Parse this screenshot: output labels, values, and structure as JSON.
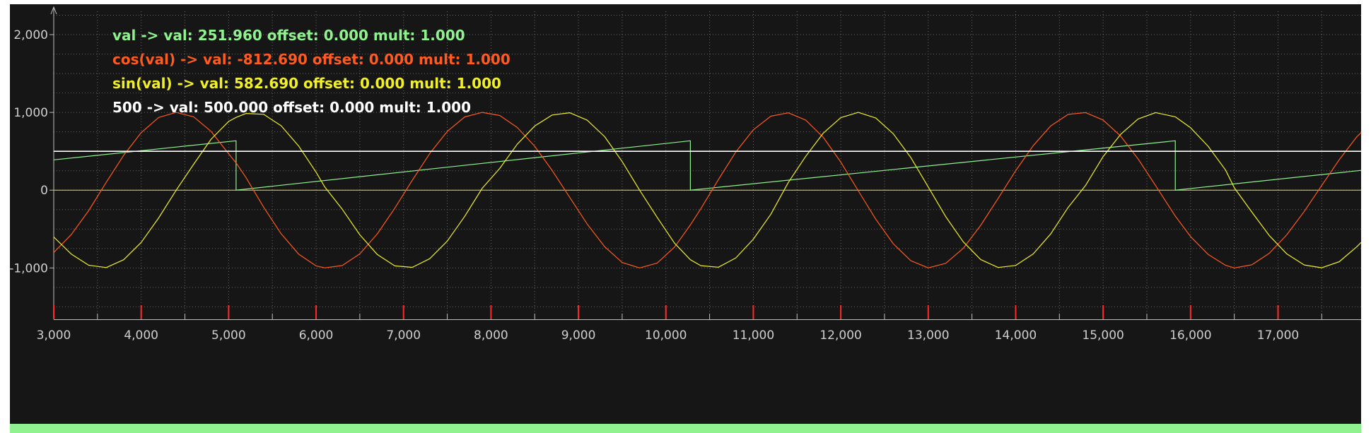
{
  "chart_data": {
    "type": "line",
    "title": "",
    "xlabel": "",
    "ylabel": "",
    "xlim": [
      3000,
      17950
    ],
    "ylim": [
      -1660,
      2300
    ],
    "grid": true,
    "x_ticks": [
      3000,
      4000,
      5000,
      6000,
      7000,
      8000,
      9000,
      10000,
      11000,
      12000,
      13000,
      14000,
      15000,
      16000,
      17000
    ],
    "x_tick_labels": [
      "3,000",
      "4,000",
      "5,000",
      "6,000",
      "7,000",
      "8,000",
      "9,000",
      "10,000",
      "11,000",
      "12,000",
      "13,000",
      "14,000",
      "15,000",
      "16,000",
      "17,000"
    ],
    "y_ticks": [
      2000,
      1000,
      0,
      -1000
    ],
    "y_tick_labels": [
      "2,000",
      "1,000",
      "0",
      "-1,000"
    ],
    "legend_position": "top-left",
    "series": [
      {
        "name": "val",
        "legend_text": "val ->  val: 251.960 offset: 0.000 mult: 1.000",
        "color": "#8ff28f",
        "points": [
          [
            3000,
            390
          ],
          [
            5085,
            635
          ],
          [
            5085,
            0
          ],
          [
            10280,
            635
          ],
          [
            10280,
            0
          ],
          [
            15825,
            635
          ],
          [
            15825,
            0
          ],
          [
            17950,
            255
          ]
        ]
      },
      {
        "name": "cos(val)",
        "legend_text": "cos(val) ->  val: -812.690 offset: 0.000 mult: 1.000",
        "color": "#ff5a1f",
        "points": [
          [
            3000,
            -802
          ],
          [
            3200,
            -572
          ],
          [
            3400,
            -262
          ],
          [
            3600,
            100
          ],
          [
            3800,
            448
          ],
          [
            4000,
            740
          ],
          [
            4200,
            935
          ],
          [
            4400,
            1000
          ],
          [
            4600,
            943
          ],
          [
            4800,
            755
          ],
          [
            5000,
            467
          ],
          [
            5085,
            351
          ],
          [
            5200,
            159
          ],
          [
            5400,
            -218
          ],
          [
            5600,
            -560
          ],
          [
            5800,
            -822
          ],
          [
            6000,
            -973
          ],
          [
            6100,
            -999
          ],
          [
            6300,
            -969
          ],
          [
            6500,
            -819
          ],
          [
            6700,
            -562
          ],
          [
            6900,
            -232
          ],
          [
            7100,
            127
          ],
          [
            7300,
            472
          ],
          [
            7500,
            756
          ],
          [
            7700,
            942
          ],
          [
            7900,
            1000
          ],
          [
            8100,
            960
          ],
          [
            8300,
            807
          ],
          [
            8500,
            565
          ],
          [
            8700,
            253
          ],
          [
            8900,
            -91
          ],
          [
            9100,
            -435
          ],
          [
            9300,
            -726
          ],
          [
            9500,
            -930
          ],
          [
            9700,
            -1000
          ],
          [
            9900,
            -937
          ],
          [
            10100,
            -731
          ],
          [
            10280,
            -447
          ],
          [
            10400,
            -238
          ],
          [
            10600,
            136
          ],
          [
            10800,
            492
          ],
          [
            11000,
            776
          ],
          [
            11200,
            951
          ],
          [
            11400,
            995
          ],
          [
            11600,
            900
          ],
          [
            11800,
            679
          ],
          [
            12000,
            362
          ],
          [
            12200,
            -7
          ],
          [
            12400,
            -373
          ],
          [
            12600,
            -688
          ],
          [
            12800,
            -907
          ],
          [
            13000,
            -999
          ],
          [
            13200,
            -941
          ],
          [
            13400,
            -748
          ],
          [
            13600,
            -452
          ],
          [
            13800,
            -105
          ],
          [
            14000,
            251
          ],
          [
            14200,
            572
          ],
          [
            14400,
            825
          ],
          [
            14600,
            975
          ],
          [
            14800,
            998
          ],
          [
            15000,
            902
          ],
          [
            15200,
            696
          ],
          [
            15400,
            402
          ],
          [
            15600,
            58
          ],
          [
            15825,
            -333
          ],
          [
            16000,
            -596
          ],
          [
            16200,
            -825
          ],
          [
            16400,
            -966
          ],
          [
            16500,
            -1000
          ],
          [
            16700,
            -960
          ],
          [
            16900,
            -812
          ],
          [
            17100,
            -574
          ],
          [
            17300,
            -273
          ],
          [
            17500,
            60
          ],
          [
            17700,
            392
          ],
          [
            17900,
            685
          ],
          [
            17950,
            740
          ]
        ]
      },
      {
        "name": "sin(val)",
        "legend_text": "sin(val) ->  val: 582.690 offset: 0.000 mult: 1.000",
        "color": "#f0ef2a",
        "points": [
          [
            3000,
            -602
          ],
          [
            3200,
            -821
          ],
          [
            3400,
            -965
          ],
          [
            3600,
            -995
          ],
          [
            3800,
            -894
          ],
          [
            4000,
            -672
          ],
          [
            4200,
            -357
          ],
          [
            4400,
            0
          ],
          [
            4600,
            334
          ],
          [
            4800,
            656
          ],
          [
            5000,
            884
          ],
          [
            5085,
            936
          ],
          [
            5200,
            987
          ],
          [
            5400,
            976
          ],
          [
            5600,
            829
          ],
          [
            5800,
            569
          ],
          [
            6000,
            232
          ],
          [
            6100,
            40
          ],
          [
            6300,
            -246
          ],
          [
            6500,
            -574
          ],
          [
            6700,
            -827
          ],
          [
            6900,
            -973
          ],
          [
            7100,
            -992
          ],
          [
            7300,
            -881
          ],
          [
            7500,
            -655
          ],
          [
            7700,
            -336
          ],
          [
            7900,
            25
          ],
          [
            8100,
            280
          ],
          [
            8300,
            591
          ],
          [
            8500,
            825
          ],
          [
            8700,
            967
          ],
          [
            8900,
            996
          ],
          [
            9100,
            900
          ],
          [
            9300,
            688
          ],
          [
            9500,
            368
          ],
          [
            9700,
            0
          ],
          [
            9900,
            -349
          ],
          [
            10100,
            -683
          ],
          [
            10280,
            -894
          ],
          [
            10400,
            -971
          ],
          [
            10600,
            -991
          ],
          [
            10800,
            -871
          ],
          [
            11000,
            -630
          ],
          [
            11200,
            -309
          ],
          [
            11400,
            99
          ],
          [
            11600,
            436
          ],
          [
            11800,
            734
          ],
          [
            12000,
            932
          ],
          [
            12200,
            1000
          ],
          [
            12400,
            928
          ],
          [
            12600,
            726
          ],
          [
            12800,
            421
          ],
          [
            13000,
            41
          ],
          [
            13200,
            -339
          ],
          [
            13400,
            -664
          ],
          [
            13600,
            -892
          ],
          [
            13800,
            -994
          ],
          [
            14000,
            -968
          ],
          [
            14200,
            -820
          ],
          [
            14400,
            -564
          ],
          [
            14600,
            -221
          ],
          [
            14800,
            62
          ],
          [
            15000,
            432
          ],
          [
            15200,
            718
          ],
          [
            15400,
            916
          ],
          [
            15600,
            998
          ],
          [
            15825,
            943
          ],
          [
            16000,
            803
          ],
          [
            16200,
            565
          ],
          [
            16400,
            259
          ],
          [
            16500,
            30
          ],
          [
            16700,
            -280
          ],
          [
            16900,
            -583
          ],
          [
            17100,
            -819
          ],
          [
            17300,
            -962
          ],
          [
            17500,
            -998
          ],
          [
            17700,
            -920
          ],
          [
            17900,
            -728
          ],
          [
            17950,
            -672
          ]
        ]
      },
      {
        "name": "500",
        "legend_text": "500 ->  val: 500.000 offset: 0.000 mult: 1.000",
        "color": "#ffffff",
        "points": [
          [
            3000,
            500
          ],
          [
            17950,
            500
          ]
        ]
      }
    ]
  },
  "colors": {
    "panel_background": "#161616",
    "grid": "#6a6a6a",
    "axis": "#bdbdbd",
    "tick_label": "#cfcfcf",
    "zero_line": "#e2d84a",
    "x_tick_marks": "#ff2b2b",
    "status_strip": "#8ff28f"
  }
}
